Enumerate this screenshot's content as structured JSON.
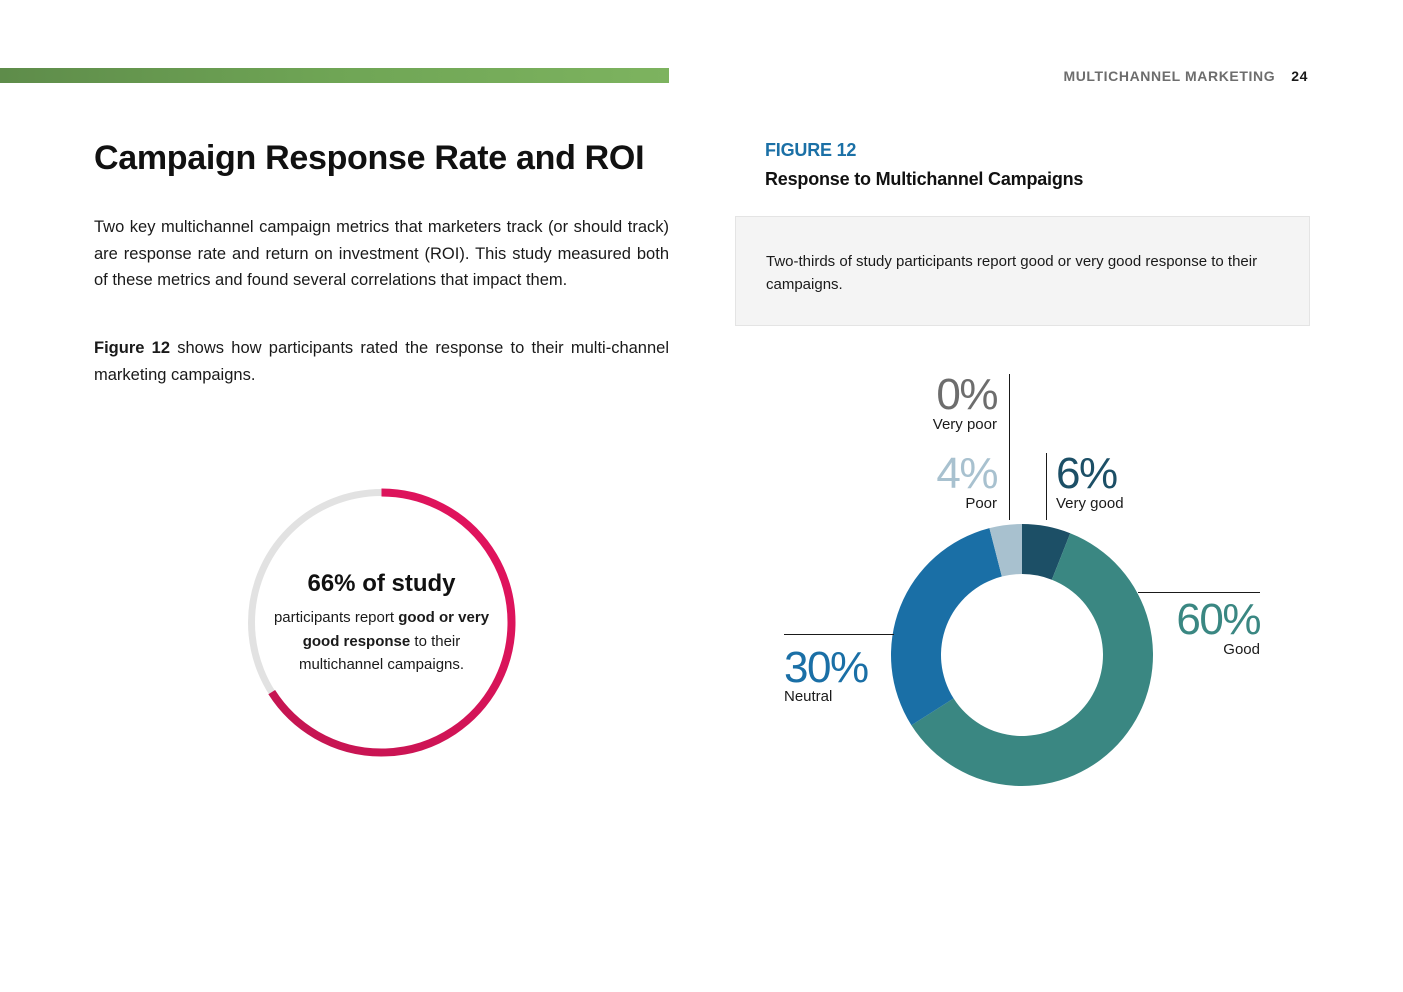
{
  "header": {
    "section": "MULTICHANNEL MARKETING",
    "page_number": "24",
    "accent_color": "#6fa555"
  },
  "article": {
    "title": "Campaign Response Rate and ROI",
    "paragraph1": "Two key multichannel campaign metrics that marketers track (or should track) are response rate and return on investment (ROI). This study measured both of these metrics and found several correlations that impact them.",
    "paragraph2_bold": "Figure 12",
    "paragraph2_rest": " shows how participants rated the response to their multi-channel marketing campaigns."
  },
  "highlight_ring": {
    "value_percent": 66,
    "headline": "66% of study",
    "text_pre": "participants report ",
    "text_bold": "good or very good response",
    "text_post": " to their multichannel campaigns.",
    "colors": {
      "track": "#e2e2e2",
      "fill_start": "#e5135f",
      "fill_end": "#c21550"
    }
  },
  "figure": {
    "label": "FIGURE 12",
    "title": "Response to Multichannel Campaigns",
    "callout": "Two-thirds of study participants report good or very good response to their campaigns."
  },
  "chart_data": {
    "type": "pie",
    "donut": true,
    "title": "Response to Multichannel Campaigns",
    "slices": [
      {
        "label": "Very good",
        "value": 6,
        "display": "6%",
        "color": "#1c4f66"
      },
      {
        "label": "Good",
        "value": 60,
        "display": "60%",
        "color": "#3a8782"
      },
      {
        "label": "Neutral",
        "value": 30,
        "display": "30%",
        "color": "#1a6fa6"
      },
      {
        "label": "Poor",
        "value": 4,
        "display": "4%",
        "color": "#a8c1cf"
      },
      {
        "label": "Very poor",
        "value": 0,
        "display": "0%",
        "color": "#6d6d6d"
      }
    ]
  }
}
